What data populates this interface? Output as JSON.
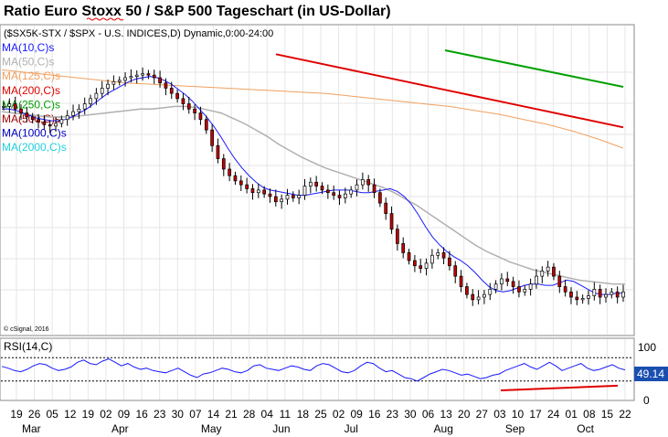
{
  "title": "Ratio Euro Stoxx 50 / S&P 500 Tageschart (in US-Dollar)",
  "subtitle": "($SX5K-STX / $SPX - U.S. INDICES,D) Dynamic,0:00-24:00",
  "copyright": "© cSignal, 2016",
  "ma_legend": [
    {
      "label": "MA(10,C)s",
      "color": "#1a1aff"
    },
    {
      "label": "MA(50,C)s",
      "color": "#b0b0b0"
    },
    {
      "label": "MA(125,C)s",
      "color": "#f0a060"
    },
    {
      "label": "MA(200,C)s",
      "color": "#e00000"
    },
    {
      "label": "MA(250,C)s",
      "color": "#00a000"
    },
    {
      "label": "MA(500,C)s",
      "color": "#a00000"
    },
    {
      "label": "MA(1000,C)s",
      "color": "#0000c0"
    },
    {
      "label": "MA(2000,C)s",
      "color": "#20d0e0"
    }
  ],
  "rsi": {
    "label": "RSI(14,C)",
    "value_label": "49.14",
    "scale_top": "100",
    "scale_bottom": "0",
    "line_color": "#1a1aff",
    "trend_color": "#e00000"
  },
  "x_axis": {
    "days": [
      "19",
      "26",
      "05",
      "12",
      "19",
      "02",
      "09",
      "16",
      "23",
      "30",
      "07",
      "14",
      "21",
      "28",
      "04",
      "11",
      "18",
      "25",
      "02",
      "09",
      "16",
      "23",
      "30",
      "06",
      "13",
      "20",
      "27",
      "03",
      "10",
      "17",
      "24",
      "01",
      "08",
      "15",
      "22"
    ],
    "months": [
      "Mar",
      "Apr",
      "May",
      "Jun",
      "Jul",
      "Aug",
      "Sep",
      "Oct"
    ]
  },
  "chart_data": {
    "type": "candlestick",
    "title": "Ratio Euro Stoxx 50 / S&P 500 Tageschart (in US-Dollar)",
    "xlabel": "",
    "ylabel": "",
    "grid": true,
    "price_series": [
      0.6,
      0.62,
      0.58,
      0.55,
      0.52,
      0.5,
      0.48,
      0.46,
      0.45,
      0.47,
      0.5,
      0.53,
      0.56,
      0.58,
      0.62,
      0.66,
      0.7,
      0.74,
      0.77,
      0.79,
      0.8,
      0.82,
      0.83,
      0.84,
      0.85,
      0.84,
      0.82,
      0.78,
      0.74,
      0.7,
      0.66,
      0.62,
      0.58,
      0.55,
      0.5,
      0.42,
      0.3,
      0.2,
      0.12,
      0.07,
      0.03,
      0.0,
      -0.03,
      -0.06,
      -0.04,
      -0.07,
      -0.09,
      -0.13,
      -0.11,
      -0.08,
      -0.1,
      -0.08,
      -0.01,
      0.02,
      -0.01,
      -0.04,
      -0.06,
      -0.08,
      -0.1,
      -0.07,
      -0.04,
      0.0,
      0.04,
      0.0,
      -0.06,
      -0.14,
      -0.22,
      -0.34,
      -0.45,
      -0.52,
      -0.58,
      -0.62,
      -0.64,
      -0.6,
      -0.54,
      -0.52,
      -0.56,
      -0.62,
      -0.7,
      -0.78,
      -0.84,
      -0.88,
      -0.86,
      -0.84,
      -0.8,
      -0.76,
      -0.72,
      -0.74,
      -0.78,
      -0.82,
      -0.8,
      -0.76,
      -0.7,
      -0.66,
      -0.63,
      -0.7,
      -0.78,
      -0.82,
      -0.86,
      -0.88,
      -0.87,
      -0.85,
      -0.8,
      -0.86,
      -0.84,
      -0.82,
      -0.86,
      -0.82
    ],
    "ma10": [
      0.58,
      0.58,
      0.57,
      0.55,
      0.53,
      0.51,
      0.5,
      0.49,
      0.49,
      0.5,
      0.52,
      0.55,
      0.58,
      0.62,
      0.66,
      0.7,
      0.73,
      0.76,
      0.79,
      0.81,
      0.82,
      0.83,
      0.82,
      0.8,
      0.77,
      0.73,
      0.69,
      0.64,
      0.58,
      0.52,
      0.45,
      0.37,
      0.28,
      0.2,
      0.13,
      0.07,
      0.02,
      -0.02,
      -0.04,
      -0.05,
      -0.06,
      -0.07,
      -0.08,
      -0.08,
      -0.07,
      -0.06,
      -0.05,
      -0.04,
      -0.04,
      -0.04,
      -0.05,
      -0.06,
      -0.06,
      -0.05,
      -0.04,
      -0.03,
      -0.05,
      -0.09,
      -0.15,
      -0.23,
      -0.32,
      -0.4,
      -0.46,
      -0.51,
      -0.55,
      -0.58,
      -0.62,
      -0.67,
      -0.73,
      -0.78,
      -0.81,
      -0.82,
      -0.81,
      -0.79,
      -0.77,
      -0.76,
      -0.76,
      -0.77,
      -0.77,
      -0.75,
      -0.73,
      -0.74,
      -0.77,
      -0.8,
      -0.83,
      -0.84,
      -0.84,
      -0.83,
      -0.83
    ],
    "ma50": [
      0.56,
      0.55,
      0.54,
      0.53,
      0.52,
      0.52,
      0.52,
      0.53,
      0.54,
      0.55,
      0.56,
      0.57,
      0.58,
      0.58,
      0.59,
      0.6,
      0.6,
      0.59,
      0.57,
      0.55,
      0.51,
      0.47,
      0.42,
      0.37,
      0.31,
      0.26,
      0.21,
      0.17,
      0.13,
      0.1,
      0.07,
      0.04,
      0.01,
      -0.02,
      -0.06,
      -0.11,
      -0.16,
      -0.22,
      -0.28,
      -0.34,
      -0.4,
      -0.46,
      -0.51,
      -0.55,
      -0.59,
      -0.62,
      -0.65,
      -0.67,
      -0.69,
      -0.71,
      -0.73,
      -0.74,
      -0.75,
      -0.76,
      -0.76
    ],
    "ma125": [
      0.88,
      0.86,
      0.84,
      0.82,
      0.8,
      0.78,
      0.77,
      0.76,
      0.75,
      0.74,
      0.73,
      0.72,
      0.71,
      0.7,
      0.68,
      0.66,
      0.64,
      0.62,
      0.6,
      0.57,
      0.54,
      0.5,
      0.46,
      0.41,
      0.35,
      0.28
    ],
    "ma200": [
      1.0,
      0.93,
      0.86,
      0.79,
      0.72,
      0.65,
      0.58,
      0.51,
      0.44
    ],
    "ma250": [
      1.03,
      0.96,
      0.89,
      0.82,
      0.75
    ],
    "rsi_values": [
      55,
      52,
      48,
      46,
      50,
      56,
      60,
      58,
      52,
      48,
      50,
      54,
      62,
      66,
      60,
      58,
      64,
      68,
      62,
      56,
      60,
      54,
      50,
      52,
      48,
      46,
      44,
      48,
      52,
      46,
      40,
      36,
      42,
      44,
      48,
      52,
      50,
      46,
      44,
      48,
      56,
      58,
      52,
      50,
      48,
      52,
      56,
      54,
      50,
      48,
      56,
      60,
      58,
      52,
      46,
      44,
      48,
      56,
      62,
      60,
      52,
      46,
      48,
      42,
      36,
      34,
      30,
      36,
      42,
      46,
      50,
      48,
      44,
      40,
      42,
      38,
      34,
      36,
      40,
      42,
      48,
      52,
      56,
      60,
      54,
      50,
      56,
      62,
      56,
      48,
      52,
      56,
      60,
      52,
      48,
      50,
      54,
      58,
      52,
      49
    ],
    "rsi_ylim": [
      0,
      100
    ],
    "rsi_levels": [
      30,
      70
    ]
  }
}
